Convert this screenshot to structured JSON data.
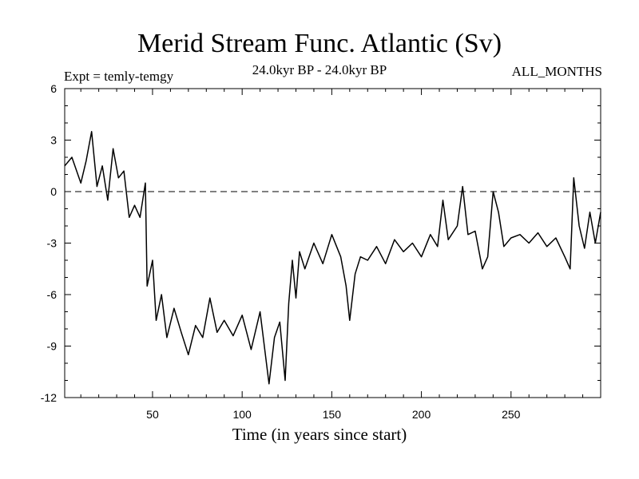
{
  "chart_data": {
    "type": "line",
    "title": "Merid Stream Func. Atlantic (Sv)",
    "subtitle_left": "Expt = temly-temgy",
    "subtitle_center": "24.0kyr BP - 24.0kyr BP",
    "subtitle_right": "ALL_MONTHS",
    "xlabel": "Time (in years since start)",
    "ylabel": "",
    "xlim": [
      1,
      300
    ],
    "ylim": [
      -12,
      6
    ],
    "xticks": [
      50,
      100,
      150,
      200,
      250
    ],
    "yticks": [
      -12,
      -9,
      -6,
      -3,
      0,
      3,
      6
    ],
    "reference_line": 0,
    "series": [
      {
        "name": "Merid Stream Func. Atlantic",
        "x": [
          1,
          5,
          10,
          13,
          16,
          19,
          22,
          25,
          28,
          31,
          34,
          37,
          40,
          43,
          46,
          47,
          50,
          52,
          55,
          58,
          62,
          66,
          70,
          74,
          78,
          82,
          86,
          90,
          95,
          100,
          105,
          110,
          115,
          118,
          121,
          124,
          126,
          128,
          130,
          132,
          135,
          140,
          145,
          150,
          155,
          158,
          160,
          163,
          166,
          170,
          175,
          180,
          185,
          190,
          195,
          200,
          205,
          209,
          212,
          215,
          220,
          223,
          226,
          230,
          234,
          237,
          240,
          243,
          246,
          250,
          255,
          260,
          265,
          270,
          275,
          280,
          283,
          285,
          288,
          291,
          294,
          297,
          300
        ],
        "values": [
          1.5,
          2.0,
          0.5,
          1.8,
          3.5,
          0.3,
          1.5,
          -0.5,
          2.5,
          0.8,
          1.2,
          -1.5,
          -0.8,
          -1.5,
          0.5,
          -5.5,
          -4.0,
          -7.5,
          -6.0,
          -8.5,
          -6.8,
          -8.2,
          -9.5,
          -7.8,
          -8.5,
          -6.2,
          -8.2,
          -7.5,
          -8.4,
          -7.2,
          -9.2,
          -7.0,
          -11.2,
          -8.5,
          -7.6,
          -11.0,
          -6.5,
          -4.0,
          -6.2,
          -3.5,
          -4.5,
          -3.0,
          -4.2,
          -2.5,
          -3.8,
          -5.5,
          -7.5,
          -4.8,
          -3.8,
          -4.0,
          -3.2,
          -4.2,
          -2.8,
          -3.5,
          -3.0,
          -3.8,
          -2.5,
          -3.2,
          -0.5,
          -2.8,
          -2.0,
          0.3,
          -2.5,
          -2.3,
          -4.5,
          -3.8,
          0.0,
          -1.2,
          -3.2,
          -2.7,
          -2.5,
          -3.0,
          -2.4,
          -3.2,
          -2.7,
          -3.8,
          -4.5,
          0.8,
          -2.0,
          -3.3,
          -1.2,
          -3.0,
          -1.2
        ]
      }
    ]
  }
}
